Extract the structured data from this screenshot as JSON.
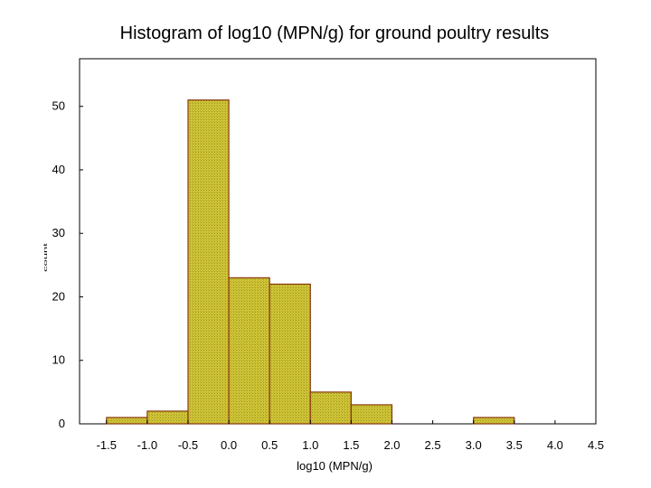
{
  "chart_data": {
    "type": "bar",
    "title": "Histogram of log10 (MPN/g) for ground poultry results",
    "xlabel": "log10 (MPN/g)",
    "ylabel": "count",
    "bin_edges": [
      -1.5,
      -1.0,
      -0.5,
      0.0,
      0.5,
      1.0,
      1.5,
      2.0,
      2.5,
      3.0,
      3.5,
      4.0,
      4.5
    ],
    "counts": [
      1,
      2,
      51,
      23,
      22,
      5,
      3,
      0,
      0,
      1,
      0,
      0
    ],
    "xlim": [
      -1.83,
      4.5
    ],
    "ylim": [
      0,
      57.5
    ],
    "x_ticks": [
      "-1.5",
      "-1.0",
      "-0.5",
      "0.0",
      "0.5",
      "1.0",
      "1.5",
      "2.0",
      "2.5",
      "3.0",
      "3.5",
      "4.0",
      "4.5"
    ],
    "y_ticks": [
      "0",
      "10",
      "20",
      "30",
      "40",
      "50"
    ],
    "bar_color": "#c8c030",
    "bar_edge_color": "#8b3a10",
    "grid": false
  }
}
